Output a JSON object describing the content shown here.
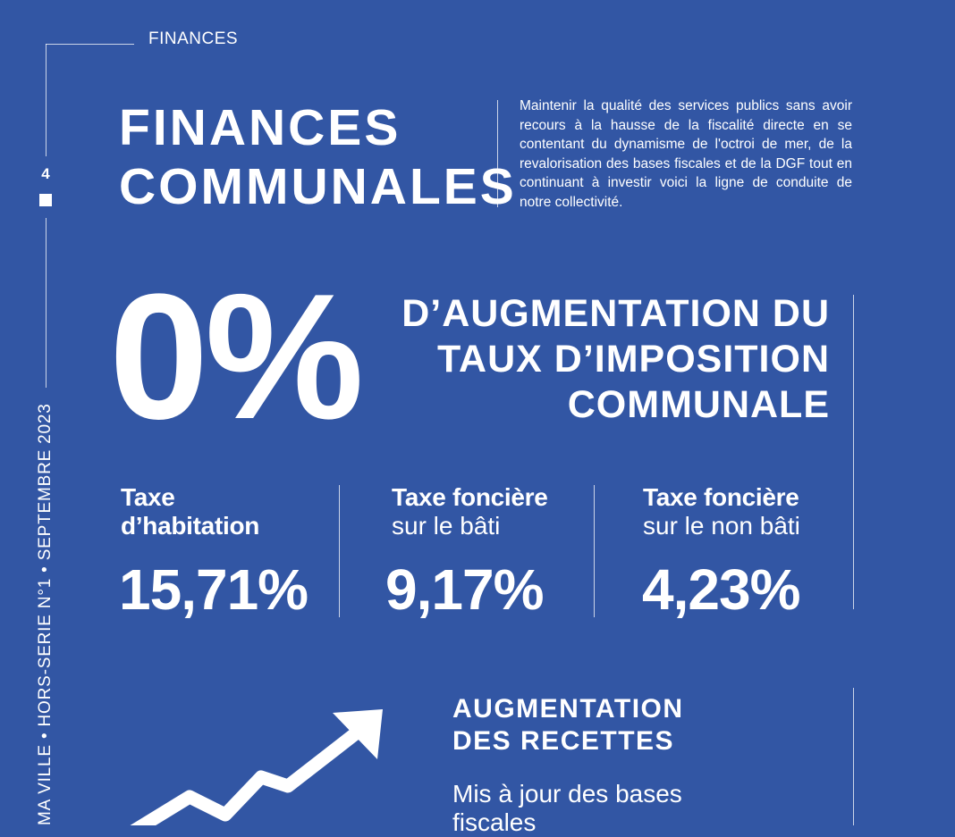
{
  "section_label": "FINANCES",
  "page_number": "4",
  "side_text": "MA VILLE • HORS-SERIE N°1 • SEPTEMBRE 2023",
  "title": {
    "line1": "FINANCES",
    "line2": "COMMUNALES"
  },
  "intro": "Maintenir la qualité des services publics sans avoir recours à la hausse de la fiscalité directe en se contentant du dynamisme de l'octroi de mer, de la revalorisation des bases fiscales et de la DGF tout en continuant à investir voici la ligne de conduite de notre collectivité.",
  "highlight": {
    "value": "0%",
    "line1": "D’AUGMENTATION DU",
    "line2": "TAUX D’IMPOSITION",
    "line3": "COMMUNALE"
  },
  "taxes": [
    {
      "name_line1": "Taxe",
      "name_line2": "d’habitation",
      "sub": "",
      "rate": "15,71%"
    },
    {
      "name_line1": "Taxe foncière",
      "name_line2": "",
      "sub": "sur le bâti",
      "rate": "9,17%"
    },
    {
      "name_line1": "Taxe foncière",
      "name_line2": "",
      "sub": "sur le non bâti",
      "rate": "4,23%"
    }
  ],
  "revenue": {
    "heading_line1": "AUGMENTATION",
    "heading_line2": "DES RECETTES",
    "body": "Mis à jour des bases fiscales"
  },
  "icons": {
    "growth": "trend-up-arrow-icon"
  },
  "colors": {
    "background": "#3256a4",
    "text": "#ffffff"
  }
}
